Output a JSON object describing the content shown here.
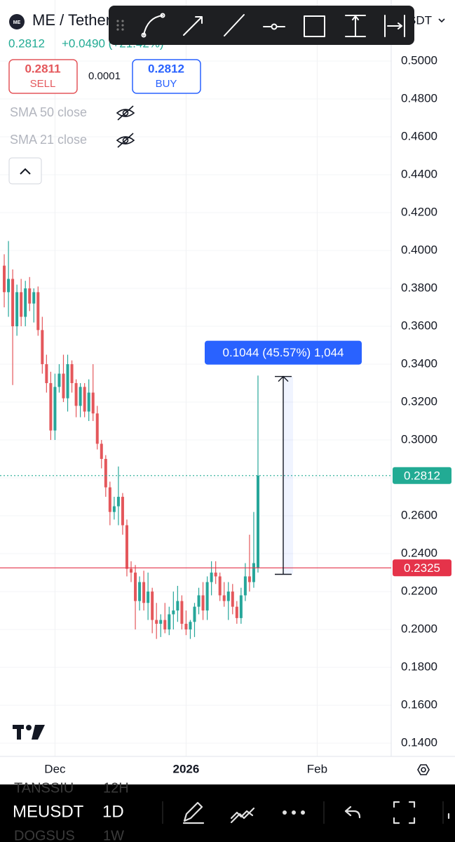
{
  "header": {
    "symbol": "ME / Tether",
    "quote": "USDT",
    "price": "0.2812",
    "change": "+0.0490 (+21.42%)"
  },
  "trade": {
    "sell_price": "0.2811",
    "sell_label": "SELL",
    "spread": "0.0001",
    "buy_price": "0.2812",
    "buy_label": "BUY"
  },
  "indicators": [
    "SMA 50 close",
    "SMA 21 close"
  ],
  "chart_data": {
    "type": "candlestick",
    "up_color": "#26a69a",
    "down_color": "#e4575b",
    "open": [
      0.392,
      0.378,
      0.385,
      0.36,
      0.378,
      0.365,
      0.38,
      0.372,
      0.378,
      0.358,
      0.34,
      0.33,
      0.305,
      0.328,
      0.335,
      0.322,
      0.34,
      0.33,
      0.318,
      0.328,
      0.315,
      0.325,
      0.314,
      0.298,
      0.29,
      0.275,
      0.262,
      0.265,
      0.27,
      0.255,
      0.232,
      0.23,
      0.215,
      0.225,
      0.214,
      0.22,
      0.205,
      0.203,
      0.205,
      0.2,
      0.208,
      0.21,
      0.215,
      0.203,
      0.2,
      0.204,
      0.212,
      0.218,
      0.21,
      0.225,
      0.23,
      0.228,
      0.218,
      0.215,
      0.22,
      0.212,
      0.206,
      0.218,
      0.228,
      0.225,
      0.2325
    ],
    "high": [
      0.398,
      0.405,
      0.39,
      0.382,
      0.385,
      0.384,
      0.386,
      0.38,
      0.381,
      0.365,
      0.345,
      0.336,
      0.335,
      0.34,
      0.345,
      0.345,
      0.342,
      0.332,
      0.33,
      0.33,
      0.332,
      0.34,
      0.318,
      0.3,
      0.292,
      0.278,
      0.27,
      0.286,
      0.272,
      0.258,
      0.236,
      0.234,
      0.228,
      0.231,
      0.23,
      0.222,
      0.214,
      0.208,
      0.214,
      0.212,
      0.22,
      0.223,
      0.218,
      0.21,
      0.205,
      0.214,
      0.222,
      0.225,
      0.228,
      0.236,
      0.236,
      0.23,
      0.225,
      0.225,
      0.224,
      0.215,
      0.222,
      0.235,
      0.25,
      0.262,
      0.334
    ],
    "low": [
      0.37,
      0.365,
      0.329,
      0.355,
      0.36,
      0.36,
      0.368,
      0.362,
      0.355,
      0.335,
      0.325,
      0.3,
      0.3,
      0.325,
      0.32,
      0.315,
      0.325,
      0.312,
      0.312,
      0.312,
      0.31,
      0.31,
      0.295,
      0.285,
      0.27,
      0.255,
      0.258,
      0.255,
      0.25,
      0.228,
      0.225,
      0.2,
      0.21,
      0.21,
      0.205,
      0.198,
      0.195,
      0.196,
      0.198,
      0.197,
      0.2,
      0.204,
      0.2,
      0.197,
      0.195,
      0.196,
      0.208,
      0.205,
      0.205,
      0.218,
      0.224,
      0.215,
      0.212,
      0.205,
      0.208,
      0.203,
      0.203,
      0.215,
      0.22,
      0.222,
      0.23
    ],
    "close": [
      0.378,
      0.385,
      0.36,
      0.378,
      0.365,
      0.38,
      0.372,
      0.378,
      0.358,
      0.34,
      0.33,
      0.305,
      0.328,
      0.335,
      0.322,
      0.34,
      0.33,
      0.318,
      0.328,
      0.315,
      0.325,
      0.314,
      0.298,
      0.29,
      0.275,
      0.262,
      0.265,
      0.27,
      0.255,
      0.232,
      0.23,
      0.215,
      0.225,
      0.214,
      0.22,
      0.205,
      0.203,
      0.205,
      0.2,
      0.208,
      0.21,
      0.215,
      0.203,
      0.2,
      0.204,
      0.212,
      0.218,
      0.21,
      0.225,
      0.23,
      0.228,
      0.218,
      0.215,
      0.22,
      0.212,
      0.206,
      0.218,
      0.228,
      0.225,
      0.235,
      0.2812
    ],
    "xlim": [
      -1,
      91.5
    ],
    "xticks": [
      {
        "value": 12,
        "label": "Dec"
      },
      {
        "value": 43,
        "label": "2026"
      },
      {
        "value": 74,
        "label": "Feb"
      }
    ],
    "ylim": [
      0.133,
      0.5322
    ],
    "yticks": [
      {
        "value": 0.14,
        "label": "0.1400"
      },
      {
        "value": 0.16,
        "label": "0.1600"
      },
      {
        "value": 0.18,
        "label": "0.1800"
      },
      {
        "value": 0.2,
        "label": "0.2000"
      },
      {
        "value": 0.22,
        "label": "0.2200"
      },
      {
        "value": 0.24,
        "label": "0.2400"
      },
      {
        "value": 0.26,
        "label": "0.2600"
      },
      {
        "value": 0.28,
        "label": "0.2800"
      },
      {
        "value": 0.3,
        "label": "0.3000"
      },
      {
        "value": 0.32,
        "label": "0.3200"
      },
      {
        "value": 0.34,
        "label": "0.3400"
      },
      {
        "value": 0.36,
        "label": "0.3600"
      },
      {
        "value": 0.38,
        "label": "0.3800"
      },
      {
        "value": 0.4,
        "label": "0.4000"
      },
      {
        "value": 0.42,
        "label": "0.4200"
      },
      {
        "value": 0.44,
        "label": "0.4400"
      },
      {
        "value": 0.46,
        "label": "0.4600"
      },
      {
        "value": 0.48,
        "label": "0.4800"
      },
      {
        "value": 0.5,
        "label": "0.5000"
      }
    ],
    "grid": true,
    "price_lines": [
      {
        "value": 0.2812,
        "color": "#22ab94",
        "style": "dotted"
      },
      {
        "value": 0.2325,
        "color": "#e5334a",
        "style": "solid"
      }
    ],
    "measure": {
      "from": 0.2291,
      "to": 0.3335,
      "label": "0.1044 (45.57%) 1,044",
      "color": "#2962ff"
    }
  },
  "bottom_bar": {
    "symbol": "MEUSDT",
    "interval": "1D",
    "ghost_symbols": [
      "TANSSIU",
      "DOGSUS"
    ],
    "ghost_intervals": [
      "12H",
      "1W"
    ]
  }
}
